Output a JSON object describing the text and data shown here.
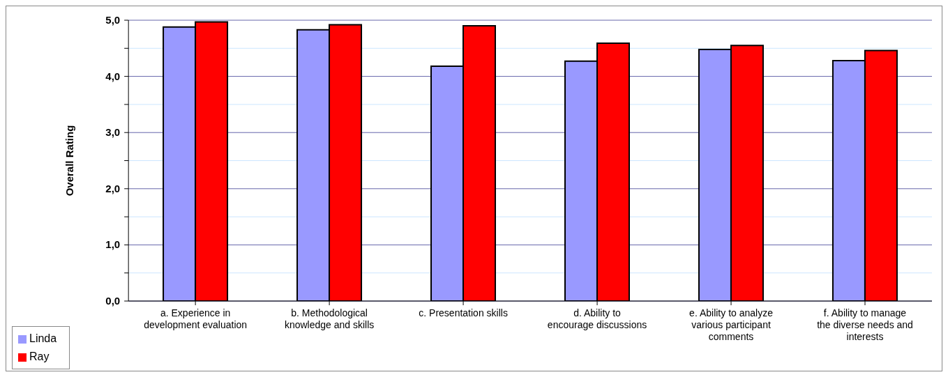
{
  "chart_data": {
    "type": "bar",
    "ylabel": "Overall Rating",
    "categories": [
      "a. Experience in development evaluation",
      "b. Methodological knowledge and skills",
      "c. Presentation skills",
      "d. Ability to encourage discussions",
      "e. Ability to analyze various participant comments",
      "f. Ability to manage the diverse needs and interests"
    ],
    "series": [
      {
        "name": "Linda",
        "color": "#9999ff",
        "values": [
          4.88,
          4.83,
          4.18,
          4.27,
          4.48,
          4.28
        ]
      },
      {
        "name": "Ray",
        "color": "#ff0000",
        "values": [
          4.97,
          4.92,
          4.9,
          4.59,
          4.55,
          4.46
        ]
      }
    ],
    "ylim": [
      0,
      5
    ],
    "yticks": [
      {
        "value": 0,
        "label": "0,0"
      },
      {
        "value": 0.5,
        "label": null
      },
      {
        "value": 1,
        "label": "1,0"
      },
      {
        "value": 1.5,
        "label": null
      },
      {
        "value": 2,
        "label": "2,0"
      },
      {
        "value": 2.5,
        "label": null
      },
      {
        "value": 3,
        "label": "3,0"
      },
      {
        "value": 3.5,
        "label": null
      },
      {
        "value": 4,
        "label": "4,0"
      },
      {
        "value": 4.5,
        "label": null
      },
      {
        "value": 5,
        "label": "5,0"
      }
    ],
    "grid": "y",
    "legend": "bottom left"
  }
}
